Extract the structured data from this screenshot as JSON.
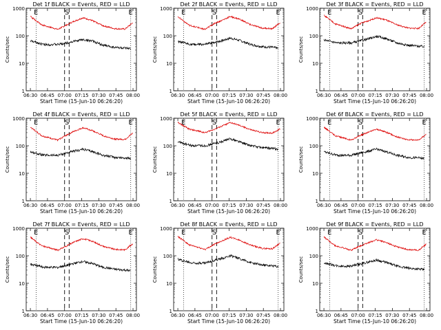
{
  "chart_data": [
    {
      "type": "line",
      "title": "Det 1f BLACK = Events, RED = LLD",
      "ylabel": "Counts/sec",
      "xlabel": "Start Time (15-Jun-10 06:26:20)",
      "x_ticks": [
        "06:30",
        "06:45",
        "07:00",
        "07:15",
        "07:30",
        "07:45",
        "08:00"
      ],
      "y_ticks": [
        "1",
        "10",
        "100",
        "1000"
      ],
      "yscale": "log",
      "ylim": [
        1,
        1000
      ],
      "xlim": [
        "06:26:20",
        "08:03:00"
      ],
      "markers": {
        "E_left": "06:35",
        "S": "07:02",
        "E_right": "07:58"
      },
      "dashed_lines": [
        "07:00",
        "07:04"
      ],
      "dotted_lines": [
        "06:35",
        "07:58"
      ],
      "series": [
        {
          "name": "BLACK = Events",
          "color": "#000000",
          "x": [
            "06:30",
            "06:42",
            "06:54",
            "07:02",
            "07:08",
            "07:16",
            "07:24",
            "07:34",
            "07:44",
            "07:53",
            "07:58"
          ],
          "values": [
            65,
            48,
            48,
            55,
            62,
            72,
            65,
            45,
            38,
            35,
            33
          ]
        },
        {
          "name": "RED = LLD",
          "color": "#dd0000",
          "x": [
            "06:30",
            "06:40",
            "06:54",
            "07:02",
            "07:08",
            "07:16",
            "07:24",
            "07:34",
            "07:44",
            "07:53",
            "08:00"
          ],
          "values": [
            500,
            250,
            170,
            250,
            330,
            450,
            360,
            230,
            180,
            175,
            300
          ]
        }
      ]
    },
    {
      "type": "line",
      "title": "Det 2f BLACK = Events, RED = LLD",
      "ylabel": "Counts/sec",
      "xlabel": "Start Time (15-Jun-10 06:26:20)",
      "x_ticks": [
        "06:30",
        "06:45",
        "07:00",
        "07:15",
        "07:30",
        "07:45",
        "08:00"
      ],
      "y_ticks": [
        "1",
        "10",
        "100",
        "1000"
      ],
      "yscale": "log",
      "ylim": [
        1,
        1000
      ],
      "xlim": [
        "06:26:20",
        "08:03:00"
      ],
      "markers": {
        "E_left": "06:35",
        "S": "07:02",
        "E_right": "07:58"
      },
      "dashed_lines": [
        "07:00",
        "07:04"
      ],
      "dotted_lines": [
        "06:35",
        "07:58"
      ],
      "series": [
        {
          "name": "BLACK = Events",
          "color": "#000000",
          "x": [
            "06:30",
            "06:42",
            "06:54",
            "07:02",
            "07:08",
            "07:16",
            "07:24",
            "07:34",
            "07:44",
            "07:53",
            "07:58"
          ],
          "values": [
            60,
            48,
            48,
            58,
            65,
            82,
            68,
            48,
            40,
            38,
            35
          ]
        },
        {
          "name": "RED = LLD",
          "color": "#dd0000",
          "x": [
            "06:30",
            "06:40",
            "06:54",
            "07:02",
            "07:08",
            "07:16",
            "07:24",
            "07:34",
            "07:44",
            "07:53",
            "08:00"
          ],
          "values": [
            500,
            240,
            170,
            280,
            350,
            500,
            400,
            250,
            190,
            180,
            310
          ]
        }
      ]
    },
    {
      "type": "line",
      "title": "Det 3f BLACK = Events, RED = LLD",
      "ylabel": "Counts/sec",
      "xlabel": "Start Time (15-Jun-10 06:26:20)",
      "x_ticks": [
        "06:30",
        "06:45",
        "07:00",
        "07:15",
        "07:30",
        "07:45",
        "08:00"
      ],
      "y_ticks": [
        "1",
        "10",
        "100",
        "1000"
      ],
      "yscale": "log",
      "ylim": [
        1,
        1000
      ],
      "xlim": [
        "06:26:20",
        "08:03:00"
      ],
      "markers": {
        "E_left": "06:35",
        "S": "07:02",
        "E_right": "07:58"
      },
      "dashed_lines": [
        "07:00",
        "07:04"
      ],
      "dotted_lines": [
        "06:35",
        "07:58"
      ],
      "series": [
        {
          "name": "BLACK = Events",
          "color": "#000000",
          "x": [
            "06:30",
            "06:42",
            "06:54",
            "07:02",
            "07:08",
            "07:16",
            "07:24",
            "07:34",
            "07:44",
            "07:53",
            "07:58"
          ],
          "values": [
            70,
            55,
            55,
            65,
            75,
            95,
            80,
            55,
            45,
            42,
            40
          ]
        },
        {
          "name": "RED = LLD",
          "color": "#dd0000",
          "x": [
            "06:30",
            "06:40",
            "06:54",
            "07:02",
            "07:08",
            "07:16",
            "07:24",
            "07:34",
            "07:44",
            "07:53",
            "08:00"
          ],
          "values": [
            550,
            270,
            180,
            280,
            340,
            450,
            380,
            250,
            190,
            185,
            320
          ]
        }
      ]
    },
    {
      "type": "line",
      "title": "Det 4f BLACK = Events, RED = LLD",
      "ylabel": "Counts/sec",
      "xlabel": "Start Time (15-Jun-10 06:26:20)",
      "x_ticks": [
        "06:30",
        "06:45",
        "07:00",
        "07:15",
        "07:30",
        "07:45",
        "08:00"
      ],
      "y_ticks": [
        "1",
        "10",
        "100",
        "1000"
      ],
      "yscale": "log",
      "ylim": [
        1,
        1000
      ],
      "xlim": [
        "06:26:20",
        "08:03:00"
      ],
      "markers": {
        "E_left": "06:35",
        "S": "07:02",
        "E_right": "07:58"
      },
      "dashed_lines": [
        "07:00",
        "07:04"
      ],
      "dotted_lines": [
        "06:35",
        "07:58"
      ],
      "series": [
        {
          "name": "BLACK = Events",
          "color": "#000000",
          "x": [
            "06:30",
            "06:42",
            "06:54",
            "07:02",
            "07:08",
            "07:16",
            "07:24",
            "07:34",
            "07:44",
            "07:53",
            "07:58"
          ],
          "values": [
            60,
            45,
            45,
            55,
            62,
            75,
            62,
            45,
            38,
            36,
            34
          ]
        },
        {
          "name": "RED = LLD",
          "color": "#dd0000",
          "x": [
            "06:30",
            "06:40",
            "06:54",
            "07:02",
            "07:08",
            "07:16",
            "07:24",
            "07:34",
            "07:44",
            "07:53",
            "08:00"
          ],
          "values": [
            480,
            230,
            160,
            250,
            330,
            450,
            360,
            230,
            175,
            170,
            290
          ]
        }
      ]
    },
    {
      "type": "line",
      "title": "Det 5f BLACK = Events, RED = LLD",
      "ylabel": "Counts/sec",
      "xlabel": "Start Time (15-Jun-10 06:26:20)",
      "x_ticks": [
        "06:30",
        "06:45",
        "07:00",
        "07:15",
        "07:30",
        "07:45",
        "08:00"
      ],
      "y_ticks": [
        "1",
        "10",
        "100",
        "1000"
      ],
      "yscale": "log",
      "ylim": [
        1,
        1000
      ],
      "xlim": [
        "06:26:20",
        "08:03:00"
      ],
      "markers": {
        "E_left": "06:35",
        "S": "07:02",
        "E_right": "07:58"
      },
      "dashed_lines": [
        "07:00",
        "07:04"
      ],
      "dotted_lines": [
        "06:35",
        "07:58"
      ],
      "series": [
        {
          "name": "BLACK = Events",
          "color": "#000000",
          "x": [
            "06:30",
            "06:42",
            "06:54",
            "07:02",
            "07:08",
            "07:16",
            "07:24",
            "07:34",
            "07:44",
            "07:53",
            "07:58"
          ],
          "values": [
            140,
            100,
            100,
            120,
            140,
            180,
            140,
            100,
            85,
            80,
            75
          ]
        },
        {
          "name": "RED = LLD",
          "color": "#dd0000",
          "x": [
            "06:30",
            "06:40",
            "06:54",
            "07:02",
            "07:08",
            "07:16",
            "07:24",
            "07:34",
            "07:44",
            "07:53",
            "08:00"
          ],
          "values": [
            700,
            400,
            300,
            400,
            500,
            700,
            550,
            380,
            300,
            290,
            420
          ]
        }
      ]
    },
    {
      "type": "line",
      "title": "Det 6f BLACK = Events, RED = LLD",
      "ylabel": "Counts/sec",
      "xlabel": "Start Time (15-Jun-10 06:26:20)",
      "x_ticks": [
        "06:30",
        "06:45",
        "07:00",
        "07:15",
        "07:30",
        "07:45",
        "08:00"
      ],
      "y_ticks": [
        "1",
        "10",
        "100",
        "1000"
      ],
      "yscale": "log",
      "ylim": [
        1,
        1000
      ],
      "xlim": [
        "06:26:20",
        "08:03:00"
      ],
      "markers": {
        "E_left": "06:35",
        "S": "07:02",
        "E_right": "07:58"
      },
      "dashed_lines": [
        "07:00",
        "07:04"
      ],
      "dotted_lines": [
        "06:35",
        "07:58"
      ],
      "series": [
        {
          "name": "BLACK = Events",
          "color": "#000000",
          "x": [
            "06:30",
            "06:42",
            "06:54",
            "07:02",
            "07:08",
            "07:16",
            "07:24",
            "07:34",
            "07:44",
            "07:53",
            "07:58"
          ],
          "values": [
            60,
            45,
            45,
            55,
            62,
            75,
            62,
            45,
            38,
            36,
            34
          ]
        },
        {
          "name": "RED = LLD",
          "color": "#dd0000",
          "x": [
            "06:30",
            "06:40",
            "06:54",
            "07:02",
            "07:08",
            "07:16",
            "07:24",
            "07:34",
            "07:44",
            "07:53",
            "08:00"
          ],
          "values": [
            480,
            230,
            160,
            240,
            300,
            400,
            320,
            210,
            165,
            160,
            270
          ]
        }
      ]
    },
    {
      "type": "line",
      "title": "Det 7f BLACK = Events, RED = LLD",
      "ylabel": "Counts/sec",
      "xlabel": "Start Time (15-Jun-10 06:26:20)",
      "x_ticks": [
        "06:30",
        "06:45",
        "07:00",
        "07:15",
        "07:30",
        "07:45",
        "08:00"
      ],
      "y_ticks": [
        "1",
        "10",
        "100",
        "1000"
      ],
      "yscale": "log",
      "ylim": [
        1,
        1000
      ],
      "xlim": [
        "06:26:20",
        "08:03:00"
      ],
      "markers": {
        "E_left": "06:35",
        "S": "07:02",
        "E_right": "07:58"
      },
      "dashed_lines": [
        "07:00",
        "07:04"
      ],
      "dotted_lines": [
        "06:35",
        "07:58"
      ],
      "series": [
        {
          "name": "BLACK = Events",
          "color": "#000000",
          "x": [
            "06:30",
            "06:42",
            "06:54",
            "07:02",
            "07:08",
            "07:16",
            "07:24",
            "07:34",
            "07:44",
            "07:53",
            "07:58"
          ],
          "values": [
            50,
            38,
            38,
            45,
            52,
            62,
            52,
            38,
            32,
            30,
            28
          ]
        },
        {
          "name": "RED = LLD",
          "color": "#dd0000",
          "x": [
            "06:30",
            "06:40",
            "06:54",
            "07:02",
            "07:08",
            "07:16",
            "07:24",
            "07:34",
            "07:44",
            "07:53",
            "08:00"
          ],
          "values": [
            470,
            230,
            160,
            230,
            310,
            420,
            340,
            220,
            170,
            165,
            280
          ]
        }
      ]
    },
    {
      "type": "line",
      "title": "Det 8f BLACK = Events, RED = LLD",
      "ylabel": "Counts/sec",
      "xlabel": "Start Time (15-Jun-10 06:26:20)",
      "x_ticks": [
        "06:30",
        "06:45",
        "07:00",
        "07:15",
        "07:30",
        "07:45",
        "08:00"
      ],
      "y_ticks": [
        "1",
        "10",
        "100",
        "1000"
      ],
      "yscale": "log",
      "ylim": [
        1,
        1000
      ],
      "xlim": [
        "06:26:20",
        "08:03:00"
      ],
      "markers": {
        "E_left": "06:35",
        "S": "07:02",
        "E_right": "07:58"
      },
      "dashed_lines": [
        "07:00",
        "07:04"
      ],
      "dotted_lines": [
        "06:35",
        "07:58"
      ],
      "series": [
        {
          "name": "BLACK = Events",
          "color": "#000000",
          "x": [
            "06:30",
            "06:42",
            "06:54",
            "07:02",
            "07:08",
            "07:16",
            "07:24",
            "07:34",
            "07:44",
            "07:53",
            "07:58"
          ],
          "values": [
            75,
            55,
            55,
            68,
            78,
            100,
            80,
            56,
            46,
            43,
            40
          ]
        },
        {
          "name": "RED = LLD",
          "color": "#dd0000",
          "x": [
            "06:30",
            "06:40",
            "06:54",
            "07:02",
            "07:08",
            "07:16",
            "07:24",
            "07:34",
            "07:44",
            "07:53",
            "08:00"
          ],
          "values": [
            500,
            250,
            170,
            260,
            340,
            470,
            370,
            240,
            185,
            180,
            300
          ]
        }
      ]
    },
    {
      "type": "line",
      "title": "Det 9f BLACK = Events, RED = LLD",
      "ylabel": "Counts/sec",
      "xlabel": "Start Time (15-Jun-10 06:26:20)",
      "x_ticks": [
        "06:30",
        "06:45",
        "07:00",
        "07:15",
        "07:30",
        "07:45",
        "08:00"
      ],
      "y_ticks": [
        "1",
        "10",
        "100",
        "1000"
      ],
      "yscale": "log",
      "ylim": [
        1,
        1000
      ],
      "xlim": [
        "06:26:20",
        "08:03:00"
      ],
      "markers": {
        "E_left": "06:35",
        "S": "07:02",
        "E_right": "07:58"
      },
      "dashed_lines": [
        "07:00",
        "07:04"
      ],
      "dotted_lines": [
        "06:35",
        "07:58"
      ],
      "series": [
        {
          "name": "BLACK = Events",
          "color": "#000000",
          "x": [
            "06:30",
            "06:42",
            "06:54",
            "07:02",
            "07:08",
            "07:16",
            "07:24",
            "07:34",
            "07:44",
            "07:53",
            "07:58"
          ],
          "values": [
            55,
            42,
            42,
            50,
            58,
            70,
            58,
            42,
            35,
            33,
            31
          ]
        },
        {
          "name": "RED = LLD",
          "color": "#dd0000",
          "x": [
            "06:30",
            "06:40",
            "06:54",
            "07:02",
            "07:08",
            "07:16",
            "07:24",
            "07:34",
            "07:44",
            "07:53",
            "08:00"
          ],
          "values": [
            480,
            230,
            160,
            230,
            290,
            380,
            310,
            210,
            165,
            160,
            270
          ]
        }
      ]
    }
  ]
}
